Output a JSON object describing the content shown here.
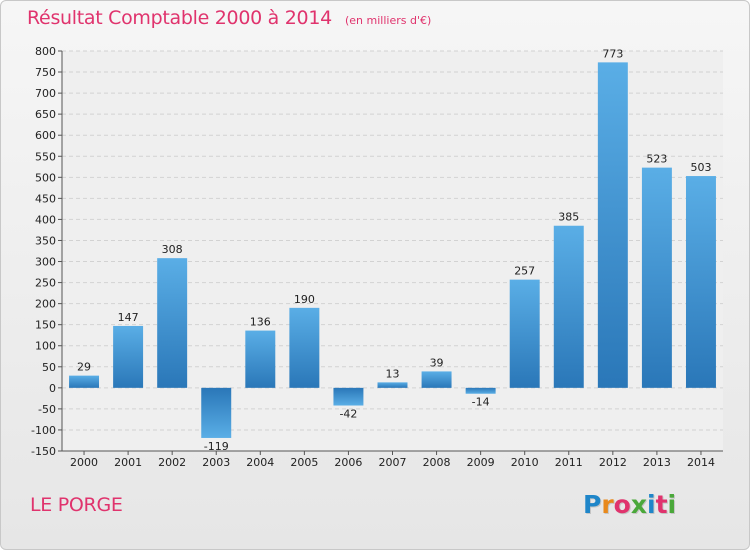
{
  "chart_data": {
    "type": "bar",
    "title": "Résultat Comptable 2000 à 2014",
    "subtitle": "(en milliers d'€)",
    "xlabel": "",
    "ylabel": "",
    "categories": [
      "2000",
      "2001",
      "2002",
      "2003",
      "2004",
      "2005",
      "2006",
      "2007",
      "2008",
      "2009",
      "2010",
      "2011",
      "2012",
      "2013",
      "2014"
    ],
    "values": [
      29,
      147,
      308,
      -119,
      136,
      190,
      -42,
      13,
      39,
      -14,
      257,
      385,
      773,
      523,
      503
    ],
    "value_labels": [
      "29",
      "147",
      "308",
      "-119",
      "136",
      "190",
      "-42",
      "13",
      "39",
      "-14",
      "257",
      "385",
      "773",
      "523",
      "503"
    ],
    "ylim": [
      -150,
      800
    ],
    "yticks": [
      -150,
      -100,
      -50,
      0,
      50,
      100,
      150,
      200,
      250,
      300,
      350,
      400,
      450,
      500,
      550,
      600,
      650,
      700,
      750,
      800
    ],
    "ytick_labels": [
      "-150",
      "-100",
      "-50",
      "0",
      "50",
      "100",
      "150",
      "200",
      "250",
      "300",
      "350",
      "400",
      "450",
      "500",
      "550",
      "600",
      "650",
      "700",
      "750",
      "800"
    ],
    "grid": true,
    "legend": "none",
    "bar_color": "#3d94d6",
    "bar_color_light": "#5aaee6",
    "bar_color_dark": "#2a77b8"
  },
  "footer": {
    "town": "LE PORGE",
    "brand_letters": [
      "P",
      "r",
      "o",
      "x",
      "i",
      "t",
      "i"
    ],
    "brand_colors": [
      "#1f86c9",
      "#e8891c",
      "#e0336d",
      "#4aa83a",
      "#1f86c9",
      "#e0336d",
      "#4aa83a"
    ]
  }
}
